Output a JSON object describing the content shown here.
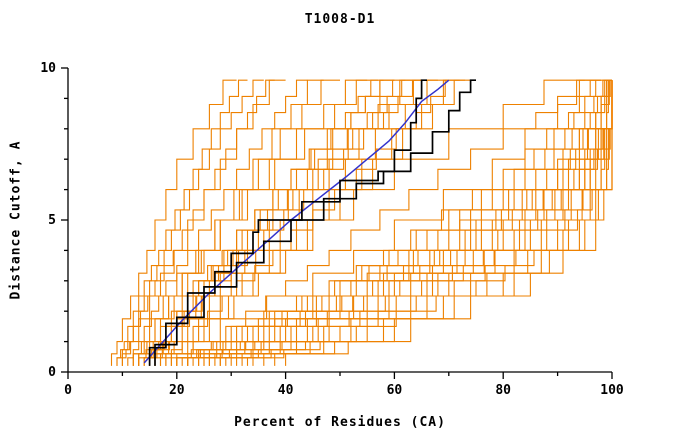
{
  "chart_data": {
    "type": "line",
    "title": "T1008-D1",
    "xlabel": "Percent of Residues (CA)",
    "ylabel": "Distance Cutoff, A",
    "xlim": [
      0,
      100
    ],
    "ylim": [
      0,
      10
    ],
    "x_ticks_major": [
      0,
      20,
      40,
      60,
      80,
      100
    ],
    "x_tick_labels": [
      "0",
      "20",
      "40",
      "60",
      "80",
      "100"
    ],
    "x_ticks_minor": [
      10,
      30,
      50,
      70,
      90
    ],
    "y_ticks_major": [
      0,
      5,
      10
    ],
    "y_tick_labels": [
      "0",
      "5",
      "10"
    ],
    "y_ticks_minor": [
      1,
      2,
      3,
      4,
      6,
      7,
      8,
      9
    ],
    "grid": false,
    "legend": "none",
    "colors": {
      "ensemble": "#EE8100",
      "highlight": "#000000",
      "reference": "#3333CC",
      "axis": "#000000"
    },
    "y_anchors": [
      0.2,
      1,
      2.5,
      4,
      6,
      8,
      9.6
    ],
    "orange_curves": [
      [
        8,
        10,
        13,
        16,
        20,
        26,
        31
      ],
      [
        9,
        12,
        15,
        19,
        24,
        30,
        36
      ],
      [
        10,
        13,
        17,
        22,
        28,
        34,
        40
      ],
      [
        11,
        14,
        18,
        24,
        31,
        38,
        44
      ],
      [
        12,
        16,
        21,
        27,
        34,
        41,
        47
      ],
      [
        9,
        11,
        14,
        18,
        23,
        28,
        33
      ],
      [
        13,
        17,
        22,
        28,
        35,
        43,
        50
      ],
      [
        10,
        12,
        16,
        21,
        27,
        33,
        38
      ],
      [
        12,
        15,
        20,
        27,
        37,
        47,
        55
      ],
      [
        14,
        18,
        24,
        32,
        42,
        52,
        60
      ],
      [
        15,
        20,
        27,
        35,
        46,
        57,
        65
      ],
      [
        13,
        17,
        23,
        31,
        41,
        51,
        58
      ],
      [
        16,
        21,
        28,
        37,
        48,
        59,
        68
      ],
      [
        14,
        19,
        26,
        34,
        45,
        56,
        64
      ],
      [
        17,
        22,
        30,
        39,
        51,
        62,
        70
      ],
      [
        15,
        19,
        25,
        33,
        44,
        55,
        62
      ],
      [
        18,
        24,
        32,
        42,
        54,
        65,
        73
      ],
      [
        16,
        20,
        27,
        36,
        47,
        58,
        66
      ],
      [
        13,
        16,
        21,
        28,
        38,
        49,
        57
      ],
      [
        17,
        23,
        31,
        41,
        53,
        64,
        72
      ],
      [
        19,
        25,
        34,
        44,
        56,
        67,
        75
      ],
      [
        15,
        18,
        24,
        31,
        41,
        52,
        60
      ],
      [
        20,
        26,
        35,
        45,
        60,
        80,
        95
      ],
      [
        22,
        29,
        40,
        52,
        68,
        86,
        98
      ],
      [
        18,
        28,
        45,
        60,
        78,
        90,
        97
      ],
      [
        20,
        32,
        50,
        66,
        84,
        95,
        100
      ],
      [
        22,
        35,
        55,
        72,
        90,
        98,
        100
      ],
      [
        19,
        30,
        48,
        63,
        80,
        92,
        98
      ],
      [
        24,
        38,
        58,
        75,
        92,
        99,
        100
      ],
      [
        21,
        33,
        52,
        68,
        86,
        96,
        100
      ],
      [
        25,
        40,
        60,
        78,
        94,
        100,
        100
      ],
      [
        23,
        36,
        56,
        73,
        90,
        97,
        100
      ],
      [
        26,
        42,
        63,
        80,
        95,
        100,
        100
      ],
      [
        20,
        31,
        49,
        64,
        82,
        93,
        99
      ],
      [
        27,
        44,
        66,
        83,
        96,
        100,
        100
      ],
      [
        22,
        34,
        53,
        70,
        88,
        97,
        100
      ],
      [
        28,
        46,
        68,
        85,
        97,
        100,
        100
      ],
      [
        24,
        37,
        57,
        74,
        91,
        98,
        100
      ],
      [
        30,
        48,
        70,
        87,
        98,
        100,
        100
      ],
      [
        25,
        39,
        59,
        76,
        93,
        99,
        100
      ],
      [
        32,
        52,
        74,
        90,
        99,
        100,
        100
      ],
      [
        26,
        41,
        61,
        79,
        94,
        100,
        100
      ],
      [
        34,
        55,
        77,
        92,
        100,
        100,
        100
      ],
      [
        28,
        45,
        65,
        82,
        95,
        100,
        100
      ],
      [
        36,
        58,
        80,
        94,
        100,
        100,
        100
      ],
      [
        29,
        47,
        67,
        84,
        96,
        100,
        100
      ],
      [
        38,
        60,
        82,
        95,
        100,
        100,
        100
      ],
      [
        31,
        50,
        71,
        88,
        98,
        100,
        100
      ],
      [
        40,
        63,
        85,
        97,
        100,
        100,
        100
      ],
      [
        33,
        53,
        75,
        91,
        99,
        100,
        100
      ]
    ],
    "black_curves": [
      [
        [
          15,
          0.2
        ],
        [
          18,
          0.8
        ],
        [
          22,
          1.6
        ],
        [
          27,
          2.6
        ],
        [
          30,
          3.3
        ],
        [
          34,
          3.9
        ],
        [
          35,
          4.6
        ],
        [
          43,
          5.0
        ],
        [
          50,
          5.6
        ],
        [
          57,
          6.3
        ],
        [
          60,
          6.6
        ],
        [
          63,
          7.3
        ],
        [
          64,
          8.2
        ],
        [
          65,
          9.0
        ],
        [
          66,
          9.6
        ]
      ],
      [
        [
          16,
          0.2
        ],
        [
          20,
          0.9
        ],
        [
          25,
          1.8
        ],
        [
          31,
          2.8
        ],
        [
          36,
          3.6
        ],
        [
          41,
          4.3
        ],
        [
          47,
          5.0
        ],
        [
          53,
          5.7
        ],
        [
          58,
          6.2
        ],
        [
          63,
          6.6
        ],
        [
          67,
          7.2
        ],
        [
          70,
          7.9
        ],
        [
          72,
          8.6
        ],
        [
          74,
          9.2
        ],
        [
          75,
          9.6
        ]
      ]
    ],
    "blue_curve": [
      [
        14,
        0.3
      ],
      [
        17,
        0.9
      ],
      [
        21,
        1.7
      ],
      [
        26,
        2.6
      ],
      [
        31,
        3.4
      ],
      [
        36,
        4.2
      ],
      [
        41,
        5.0
      ],
      [
        46,
        5.7
      ],
      [
        51,
        6.4
      ],
      [
        55,
        7.0
      ],
      [
        59,
        7.6
      ],
      [
        62,
        8.2
      ],
      [
        65,
        8.9
      ],
      [
        68,
        9.3
      ],
      [
        70,
        9.6
      ]
    ]
  }
}
